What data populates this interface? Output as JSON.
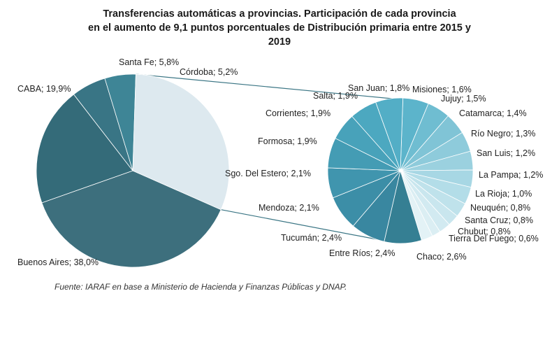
{
  "chart_data": {
    "type": "pie",
    "title_lines": [
      "Transferencias automáticas a provincias. Participación de cada provincia",
      "en el aumento de 9,1 puntos porcentuales de Distribución primaria entre 2015 y",
      "2019"
    ],
    "main_pie": {
      "slices": [
        {
          "name": "Buenos Aires",
          "value": 38.0,
          "label": "Buenos Aires; 38,0%",
          "color": "#3d6f7d"
        },
        {
          "name": "CABA",
          "value": 19.9,
          "label": "CABA; 19,9%",
          "color": "#346b79"
        },
        {
          "name": "Santa Fe",
          "value": 5.8,
          "label": "Santa Fe; 5,8%",
          "color": "#397585"
        },
        {
          "name": "Córdoba",
          "value": 5.2,
          "label": "Córdoba; 5,2%",
          "color": "#3e8596"
        },
        {
          "name": "Resto",
          "value": 31.1,
          "label": "",
          "color": "#dde9ef"
        }
      ]
    },
    "secondary_pie": {
      "slices": [
        {
          "name": "San Juan",
          "value": 1.8,
          "label": "San Juan; 1,8%",
          "color": "#5cb4cb"
        },
        {
          "name": "Misiones",
          "value": 1.6,
          "label": "Misiones; 1,6%",
          "color": "#6fbdd1"
        },
        {
          "name": "Jujuy",
          "value": 1.5,
          "label": "Jujuy; 1,5%",
          "color": "#80c4d6"
        },
        {
          "name": "Catamarca",
          "value": 1.4,
          "label": "Catamarca; 1,4%",
          "color": "#8ecbdb"
        },
        {
          "name": "Río Negro",
          "value": 1.3,
          "label": "Río Negro; 1,3%",
          "color": "#9bd1df"
        },
        {
          "name": "San Luis",
          "value": 1.2,
          "label": "San Luis; 1,2%",
          "color": "#a7d7e4"
        },
        {
          "name": "La Pampa",
          "value": 1.2,
          "label": "La Pampa; 1,2%",
          "color": "#b3dde8"
        },
        {
          "name": "La Rioja",
          "value": 1.0,
          "label": "La Rioja; 1,0%",
          "color": "#bfe2eb"
        },
        {
          "name": "Neuquén",
          "value": 0.8,
          "label": "Neuquén; 0,8%",
          "color": "#c9e6ee"
        },
        {
          "name": "Santa Cruz",
          "value": 0.8,
          "label": "Santa Cruz; 0,8%",
          "color": "#d2eaf1"
        },
        {
          "name": "Tierra Del Fuego",
          "value": 0.6,
          "label": "Tierra Del Fuego; 0,6%",
          "color": "#dbeef3"
        },
        {
          "name": "Chubut",
          "value": 0.8,
          "label": "Chubut; 0,8%",
          "color": "#e3f2f6"
        },
        {
          "name": "Chaco",
          "value": 2.6,
          "label": "Chaco; 2,6%",
          "color": "#357f93"
        },
        {
          "name": "Entre Ríos",
          "value": 2.4,
          "label": "Entre Ríos; 2,4%",
          "color": "#3987a0"
        },
        {
          "name": "Tucumán",
          "value": 2.4,
          "label": "Tucumán; 2,4%",
          "color": "#3c8ea7"
        },
        {
          "name": "Mendoza",
          "value": 2.1,
          "label": "Mendoza; 2,1%",
          "color": "#4095ae"
        },
        {
          "name": "Sgo. Del Estero",
          "value": 2.1,
          "label": "Sgo. Del Estero; 2,1%",
          "color": "#449cb4"
        },
        {
          "name": "Formosa",
          "value": 1.9,
          "label": "Formosa; 1,9%",
          "color": "#48a2ba"
        },
        {
          "name": "Corrientes",
          "value": 1.9,
          "label": "Corrientes; 1,9%",
          "color": "#4ca8c0"
        },
        {
          "name": "Salta",
          "value": 1.9,
          "label": "Salta; 1,9%",
          "color": "#53aec6"
        }
      ]
    }
  },
  "source": "Fuente: IARAF en base a Ministerio de Hacienda y Finanzas Públicas y DNAP."
}
